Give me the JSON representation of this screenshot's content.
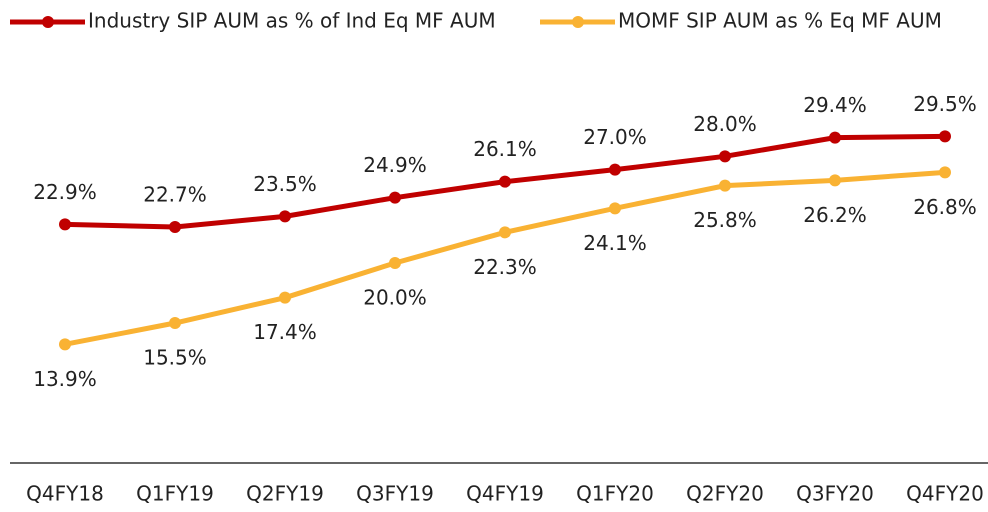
{
  "chart_data": {
    "type": "line",
    "categories": [
      "Q4FY18",
      "Q1FY19",
      "Q2FY19",
      "Q3FY19",
      "Q4FY19",
      "Q1FY20",
      "Q2FY20",
      "Q3FY20",
      "Q4FY20"
    ],
    "series": [
      {
        "name": "Industry SIP AUM as % of Ind Eq MF AUM",
        "color": "#c00000",
        "values": [
          22.9,
          22.7,
          23.5,
          24.9,
          26.1,
          27.0,
          28.0,
          29.4,
          29.5
        ],
        "value_labels": [
          "22.9%",
          "22.7%",
          "23.5%",
          "24.9%",
          "26.1%",
          "27.0%",
          "28.0%",
          "29.4%",
          "29.5%"
        ]
      },
      {
        "name": "MOMF SIP AUM as % Eq MF AUM",
        "color": "#f9b233",
        "values": [
          13.9,
          15.5,
          17.4,
          20.0,
          22.3,
          24.1,
          25.8,
          26.2,
          26.8
        ],
        "value_labels": [
          "13.9%",
          "15.5%",
          "17.4%",
          "20.0%",
          "22.3%",
          "24.1%",
          "25.8%",
          "26.2%",
          "26.8%"
        ]
      }
    ],
    "ylim": [
      5,
      35
    ],
    "legend": "top"
  }
}
